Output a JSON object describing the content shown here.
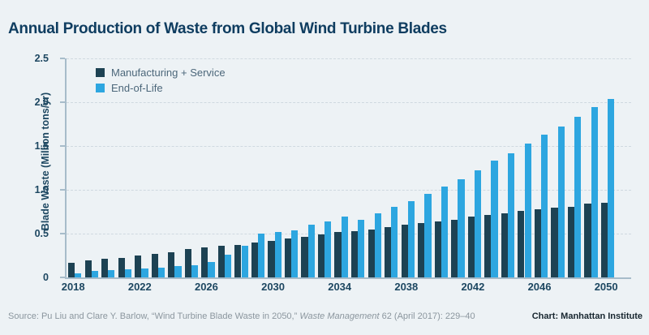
{
  "title": "Annual Production of Waste from Global Wind Turbine Blades",
  "legend": [
    {
      "label": "Manufacturing + Service",
      "color": "#1d4253"
    },
    {
      "label": "End-of-Life",
      "color": "#2da6e0"
    }
  ],
  "chart_data": {
    "type": "bar",
    "title": "Annual Production of Waste from Global Wind Turbine Blades",
    "xlabel": "",
    "ylabel": "Blade Waste (Million tons/yr)",
    "ylim": [
      0,
      2.5
    ],
    "yticks": [
      0,
      0.5,
      1.0,
      1.5,
      2.0,
      2.5
    ],
    "ytick_labels": [
      "0",
      "0.5",
      "1.0",
      "1.5",
      "2.0",
      "2.5"
    ],
    "xtick_labels": [
      "2018",
      "2022",
      "2026",
      "2030",
      "2034",
      "2038",
      "2042",
      "2046",
      "2050"
    ],
    "grid": "horizontal-dashed",
    "legend_position": "top-left-inside",
    "categories": [
      2018,
      2019,
      2020,
      2021,
      2022,
      2023,
      2024,
      2025,
      2026,
      2027,
      2028,
      2029,
      2030,
      2031,
      2032,
      2033,
      2034,
      2035,
      2036,
      2037,
      2038,
      2039,
      2040,
      2041,
      2042,
      2043,
      2044,
      2045,
      2046,
      2047,
      2048,
      2049,
      2050
    ],
    "series": [
      {
        "name": "Manufacturing + Service",
        "color": "#1d4253",
        "values": [
          0.17,
          0.19,
          0.21,
          0.22,
          0.25,
          0.27,
          0.29,
          0.32,
          0.34,
          0.36,
          0.37,
          0.4,
          0.42,
          0.44,
          0.46,
          0.49,
          0.52,
          0.53,
          0.55,
          0.57,
          0.6,
          0.62,
          0.64,
          0.66,
          0.69,
          0.71,
          0.73,
          0.76,
          0.78,
          0.8,
          0.81,
          0.84,
          0.85
        ]
      },
      {
        "name": "End-of-Life",
        "color": "#2da6e0",
        "values": [
          0.05,
          0.07,
          0.08,
          0.09,
          0.1,
          0.11,
          0.13,
          0.14,
          0.18,
          0.26,
          0.36,
          0.5,
          0.52,
          0.54,
          0.6,
          0.64,
          0.69,
          0.66,
          0.73,
          0.81,
          0.87,
          0.95,
          1.04,
          1.12,
          1.22,
          1.33,
          1.42,
          1.53,
          1.63,
          1.72,
          1.83,
          1.94,
          2.04
        ]
      }
    ]
  },
  "footer": {
    "source_prefix": "Source: Pu Liu and Clare Y. Barlow, “Wind Turbine Blade Waste in 2050,” ",
    "source_journal": "Waste Management",
    "source_suffix": " 62 (April 2017): 229–40",
    "credit": "Chart: Manhattan Institute"
  }
}
